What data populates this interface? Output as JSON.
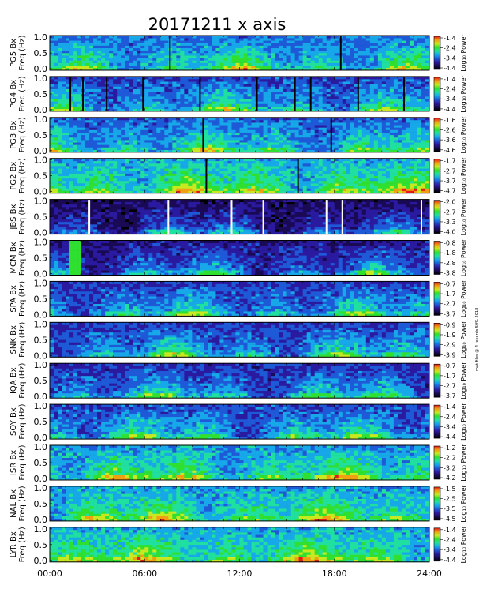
{
  "figure": {
    "title": "20171211  x axis",
    "side_note": "mat files @ 4 records 50% 2018",
    "x_ticks": [
      "00:00",
      "06:00",
      "12:00",
      "18:00",
      "24:00"
    ]
  },
  "chart_data": {
    "type": "heatmap",
    "title": "20171211  x axis",
    "x_range_hours": [
      0,
      24
    ],
    "x_ticks": [
      "00:00",
      "06:00",
      "12:00",
      "18:00",
      "24:00"
    ],
    "y_range_hz": [
      0.0,
      1.0
    ],
    "y_ticks": [
      "0.0",
      "0.5",
      "1.0"
    ],
    "colorbar_title": "Log₁₀ Power",
    "colormap": [
      "#000000",
      "#1a0a55",
      "#2a1aa0",
      "#1e5ad8",
      "#16a8e8",
      "#20e0a0",
      "#30e030",
      "#c8e820",
      "#f0a010",
      "#e81818"
    ],
    "panels": [
      {
        "station": "PG5",
        "ylabel": "PG5 Bx\nFreq (Hz)",
        "cbar_ticks": [
          "-1.4",
          "-2.4",
          "-3.4",
          "-4.4"
        ],
        "base": 0.28,
        "gaps": [
          7.55,
          18.35
        ]
      },
      {
        "station": "PG4",
        "ylabel": "PG4 Bx\nFreq (Hz)",
        "cbar_ticks": [
          "-1.4",
          "-2.4",
          "-3.4",
          "-4.4"
        ],
        "base": 0.22,
        "gaps": [
          1.25,
          2.05,
          3.55,
          5.85,
          9.45,
          13.05,
          15.45,
          16.45,
          19.45,
          22.35
        ]
      },
      {
        "station": "PG3",
        "ylabel": "PG3 Bx\nFreq (Hz)",
        "cbar_ticks": [
          "-1.6",
          "-2.6",
          "-3.6",
          "-4.6"
        ],
        "base": 0.26,
        "gaps": [
          9.65,
          17.75
        ]
      },
      {
        "station": "PG2",
        "ylabel": "PG2 Bx\nFreq (Hz)",
        "cbar_ticks": [
          "-1.7",
          "-2.7",
          "-3.7",
          "-4.7"
        ],
        "base": 0.36,
        "gaps": [
          9.85,
          15.65
        ]
      },
      {
        "station": "JBS",
        "ylabel": "JBS Bx\nFreq (Hz)",
        "cbar_ticks": [
          "-2.0",
          "-2.7",
          "-3.3",
          "-4.0"
        ],
        "base": 0.06,
        "whitelines": [
          2.45,
          7.45,
          11.45,
          13.45,
          17.45,
          18.45,
          23.45
        ]
      },
      {
        "station": "MCM",
        "ylabel": "MCM Bx\nFreq (Hz)",
        "cbar_ticks": [
          "-0.8",
          "-1.8",
          "-2.8",
          "-3.8"
        ],
        "base": 0.12,
        "burst": [
          1.35,
          1.95
        ]
      },
      {
        "station": "SPA",
        "ylabel": "SPA Bx\nFreq (Hz)",
        "cbar_ticks": [
          "-0.7",
          "-1.7",
          "-2.7",
          "-3.7"
        ],
        "base": 0.2
      },
      {
        "station": "SNK",
        "ylabel": "SNK Bx\nFreq (Hz)",
        "cbar_ticks": [
          "-0.9",
          "-1.9",
          "-2.9",
          "-3.9"
        ],
        "base": 0.2
      },
      {
        "station": "IQA",
        "ylabel": "IQA Bx\nFreq (Hz)",
        "cbar_ticks": [
          "-0.7",
          "-1.7",
          "-2.7",
          "-3.7"
        ],
        "base": 0.18
      },
      {
        "station": "SOY",
        "ylabel": "SOY Bx\nFreq (Hz)",
        "cbar_ticks": [
          "-1.4",
          "-2.4",
          "-3.4",
          "-4.4"
        ],
        "base": 0.22
      },
      {
        "station": "ISR",
        "ylabel": "ISR Bx\nFreq (Hz)",
        "cbar_ticks": [
          "-1.2",
          "-2.2",
          "-3.2",
          "-4.2"
        ],
        "base": 0.33
      },
      {
        "station": "NAL",
        "ylabel": "NAL Bx\nFreq (Hz)",
        "cbar_ticks": [
          "-1.5",
          "-2.5",
          "-3.5",
          "-4.5"
        ],
        "base": 0.34
      },
      {
        "station": "LYR",
        "ylabel": "LYR Bx\nFreq (Hz)",
        "cbar_ticks": [
          "-1.4",
          "-2.4",
          "-3.4",
          "-4.4"
        ],
        "base": 0.36
      }
    ]
  }
}
